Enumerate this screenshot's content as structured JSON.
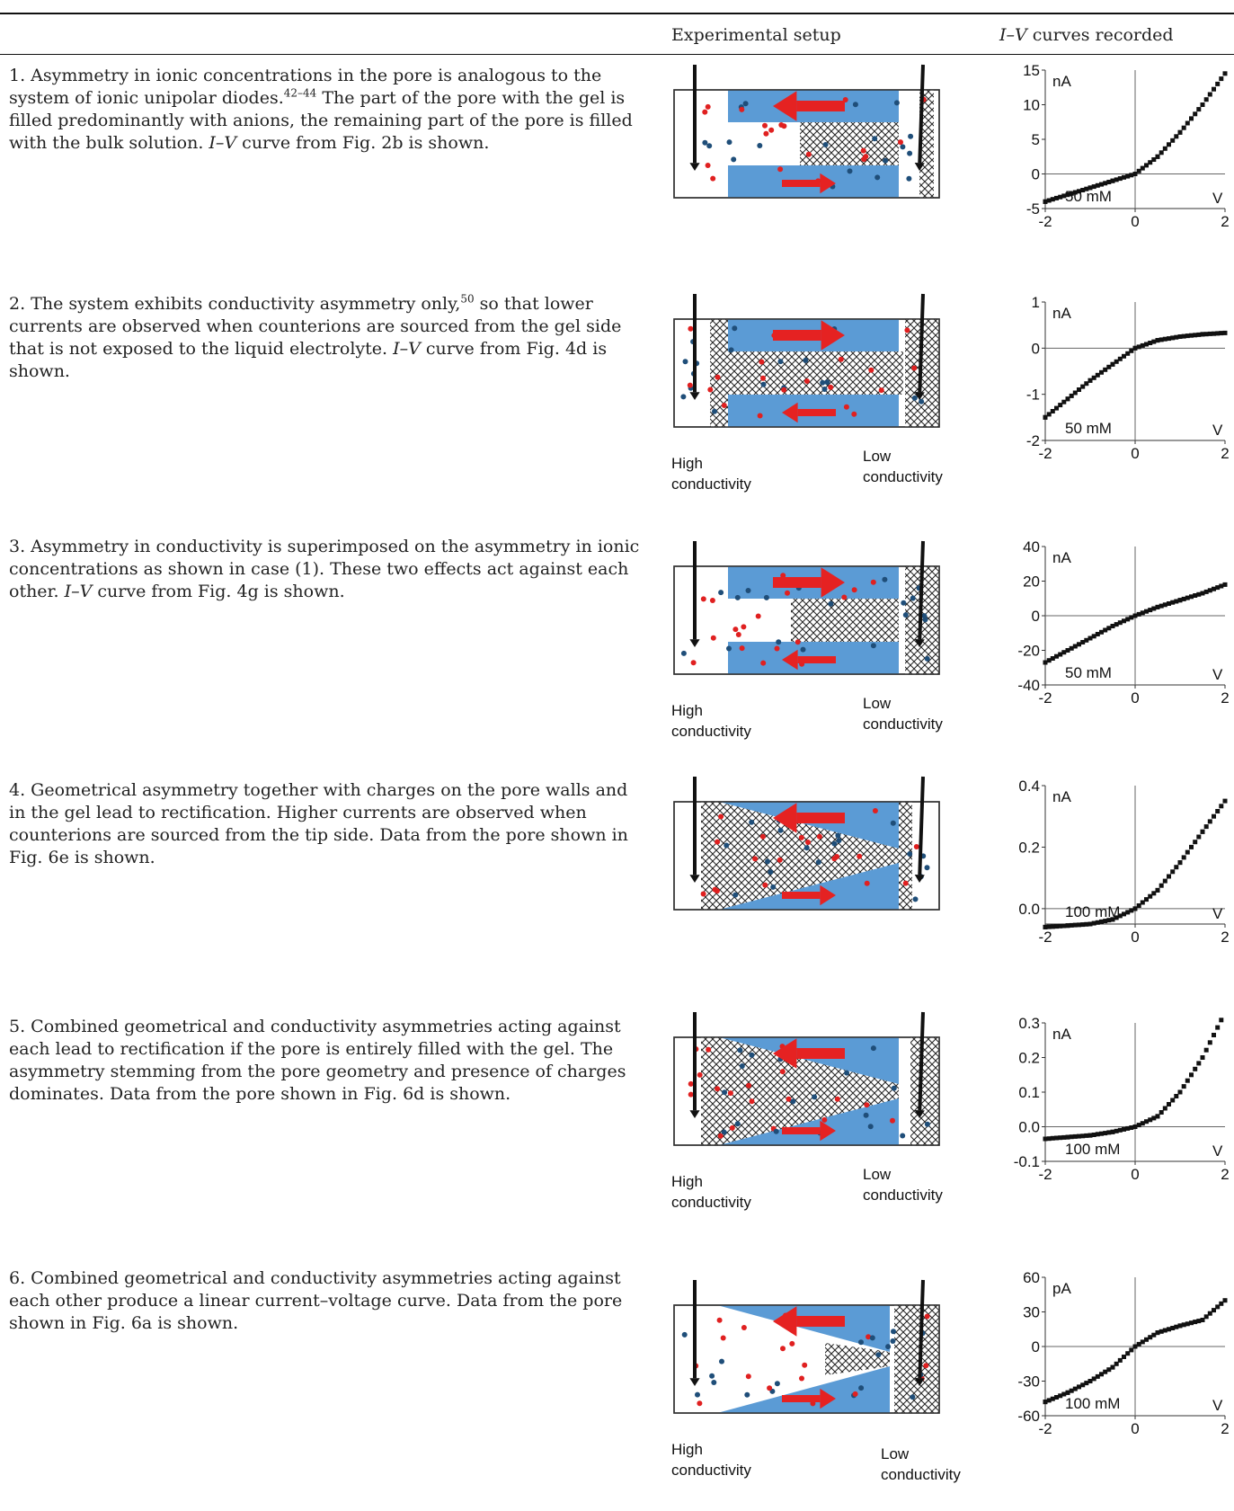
{
  "header": {
    "setup_col": "Experimental setup",
    "iv_col_italic": "I–V",
    "iv_col_rest": " curves recorded"
  },
  "rows": [
    {
      "pre": "1. Asymmetry in ionic concentrations in the pore is analogous to the system of ionic unipolar diodes.",
      "sup": "42–44",
      "post": " The part of the pore with the gel is filled predominantly with anions, the remaining part of the pore is filled with the bulk solution. ",
      "ref_italic": "I–V",
      "ref_rest": " curve from Fig. 2b is shown.",
      "left_label": "",
      "right_label": ""
    },
    {
      "pre": "2. The system exhibits conductivity asymmetry only,",
      "sup": "50",
      "post": " so that lower currents are observed when counterions are sourced from the gel side that is not exposed to the liquid electrolyte. ",
      "ref_italic": "I–V",
      "ref_rest": " curve from Fig. 4d is shown.",
      "left_label": "High conductivity",
      "right_label": "Low conductivity"
    },
    {
      "pre": "3. Asymmetry in conductivity is superimposed on the asymmetry in ionic concentrations as shown in case (1). These two effects act against each other. ",
      "sup": "",
      "post": "",
      "ref_italic": "I–V",
      "ref_rest": " curve from Fig. 4g is shown.",
      "left_label": "High conductivity",
      "right_label": "Low conductivity"
    },
    {
      "pre": "4. Geometrical asymmetry together with charges on the pore walls and in the gel lead to rectification. Higher currents are observed when counterions are sourced from the tip side. Data from the pore shown in Fig. 6e is shown.",
      "sup": "",
      "post": "",
      "ref_italic": "",
      "ref_rest": "",
      "left_label": "",
      "right_label": ""
    },
    {
      "pre": "5. Combined geometrical and conductivity asymmetries acting against each lead to rectification if the pore is entirely filled with the gel. The asymmetry stemming from the pore geometry and presence of charges dominates. Data from the pore shown in Fig. 6d is shown.",
      "sup": "",
      "post": "",
      "ref_italic": "",
      "ref_rest": "",
      "left_label": "High conductivity",
      "right_label": "Low conductivity"
    },
    {
      "pre": "6. Combined geometrical and conductivity asymmetries acting against each other produce a linear current–voltage curve. Data from the pore shown in Fig. 6a is shown.",
      "sup": "",
      "post": "",
      "ref_italic": "",
      "ref_rest": "",
      "left_label": "High conductivity",
      "right_label": "Low conductivity"
    }
  ],
  "chart_data": [
    {
      "type": "scatter",
      "ylabel": "nA",
      "xlabel": "V",
      "annotation": "50 mM",
      "x_ticks": [
        "-2",
        "0",
        "2"
      ],
      "y_ticks": [
        "15",
        "10",
        "5",
        "0",
        "-5"
      ],
      "xlim": [
        -2,
        2
      ],
      "ylim": [
        -5,
        15
      ],
      "x": [
        -2,
        -1.5,
        -1,
        -0.5,
        0,
        0.5,
        1,
        1.5,
        2
      ],
      "y": [
        -4,
        -3,
        -2,
        -1,
        0,
        2.5,
        6,
        10,
        14.5
      ]
    },
    {
      "type": "scatter",
      "ylabel": "nA",
      "xlabel": "V",
      "annotation": "50 mM",
      "x_ticks": [
        "-2",
        "0",
        "2"
      ],
      "y_ticks": [
        "1",
        "0",
        "-1",
        "-2"
      ],
      "xlim": [
        -2,
        2
      ],
      "ylim": [
        -2,
        1
      ],
      "x": [
        -2,
        -1.5,
        -1,
        -0.5,
        0,
        0.5,
        1,
        1.5,
        2
      ],
      "y": [
        -1.5,
        -1.1,
        -0.7,
        -0.35,
        0,
        0.17,
        0.25,
        0.3,
        0.33
      ]
    },
    {
      "type": "scatter",
      "ylabel": "nA",
      "xlabel": "V",
      "annotation": "50 mM",
      "x_ticks": [
        "-2",
        "0",
        "2"
      ],
      "y_ticks": [
        "40",
        "20",
        "0",
        "-20",
        "-40"
      ],
      "xlim": [
        -2,
        2
      ],
      "ylim": [
        -40,
        40
      ],
      "x": [
        -2,
        -1.5,
        -1,
        -0.5,
        0,
        0.5,
        1,
        1.5,
        2
      ],
      "y": [
        -27,
        -20,
        -13,
        -6,
        0,
        5,
        9,
        13,
        18
      ]
    },
    {
      "type": "scatter",
      "ylabel": "nA",
      "xlabel": "V",
      "annotation": "100 mM",
      "x_ticks": [
        "-2",
        "0",
        "2"
      ],
      "y_ticks": [
        "0.4",
        "0.2",
        "0.0"
      ],
      "xlim": [
        -2,
        2
      ],
      "ylim": [
        -0.05,
        0.4
      ],
      "x": [
        -2,
        -1.5,
        -1,
        -0.5,
        0,
        0.5,
        1,
        1.5,
        2
      ],
      "y": [
        -0.06,
        -0.055,
        -0.05,
        -0.035,
        0,
        0.06,
        0.15,
        0.25,
        0.35
      ]
    },
    {
      "type": "scatter",
      "ylabel": "nA",
      "xlabel": "V",
      "annotation": "100 mM",
      "x_ticks": [
        "-2",
        "0",
        "2"
      ],
      "y_ticks": [
        "0.3",
        "0.2",
        "0.1",
        "0.0",
        "-0.1"
      ],
      "xlim": [
        -2,
        2
      ],
      "ylim": [
        -0.1,
        0.3
      ],
      "x": [
        -2,
        -1.5,
        -1,
        -0.5,
        0,
        0.5,
        1,
        1.5,
        2
      ],
      "y": [
        -0.035,
        -0.03,
        -0.025,
        -0.015,
        0,
        0.03,
        0.1,
        0.2,
        0.33
      ]
    },
    {
      "type": "scatter",
      "ylabel": "pA",
      "xlabel": "V",
      "annotation": "100 mM",
      "x_ticks": [
        "-2",
        "0",
        "2"
      ],
      "y_ticks": [
        "60",
        "30",
        "0",
        "-30",
        "-60"
      ],
      "xlim": [
        -2,
        2
      ],
      "ylim": [
        -60,
        60
      ],
      "x": [
        -2,
        -1.5,
        -1,
        -0.5,
        0,
        0.5,
        1,
        1.5,
        2
      ],
      "y": [
        -48,
        -40,
        -30,
        -18,
        0,
        12,
        18,
        23,
        40
      ]
    }
  ]
}
